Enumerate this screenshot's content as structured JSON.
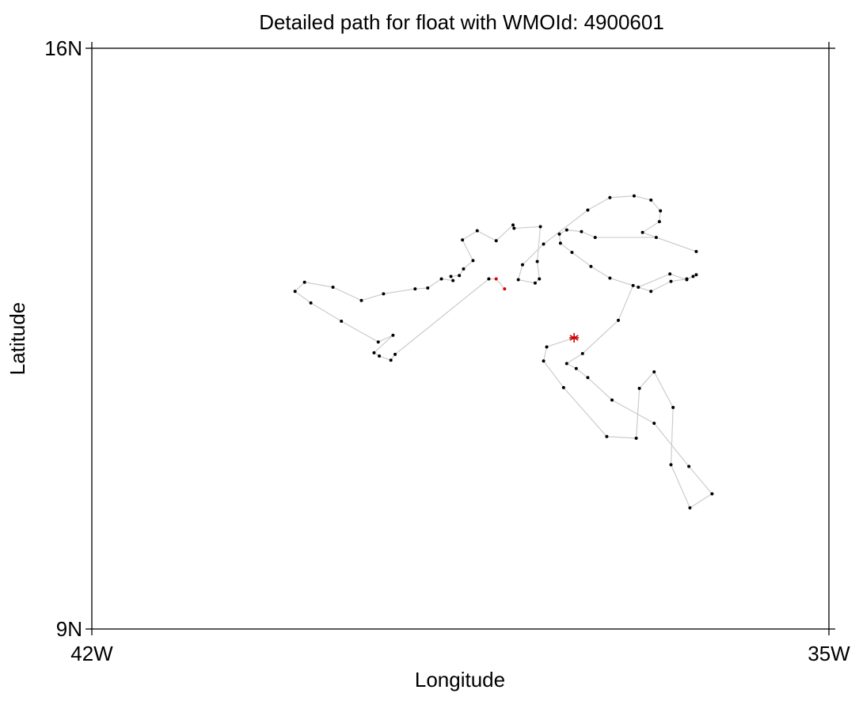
{
  "chart_data": {
    "type": "line",
    "title": "Detailed path for float with WMOId: 4900601",
    "x_label": "Longitude",
    "y_label": "Latitude",
    "xlim": [
      -42,
      -35
    ],
    "ylim": [
      9,
      16
    ],
    "xticks": [
      {
        "value": -42,
        "label": "42W"
      },
      {
        "value": -35,
        "label": "35W"
      }
    ],
    "yticks": [
      {
        "value": 9,
        "label": "9N"
      },
      {
        "value": 16,
        "label": "16N"
      }
    ],
    "series": [
      {
        "marker": "star",
        "color": "#cc0000",
        "x": [
          -37.42
        ],
        "y": [
          12.51
        ]
      },
      {
        "marker": "dot",
        "color": "#000000",
        "line_color": "#cccccc",
        "connect_from_previous": true,
        "x": [
          -37.68,
          -37.71,
          -37.52,
          -37.11,
          -36.83,
          -36.8,
          -36.66,
          -36.48,
          -36.5,
          -36.32,
          -36.11,
          -36.33,
          -36.66,
          -37.06,
          -37.29,
          -37.4,
          -37.49,
          -37.34,
          -37.0,
          -36.86,
          -36.69,
          -36.5,
          -36.35,
          -36.29,
          -36.26,
          -36.35,
          -36.51,
          -36.81,
          -37.08,
          -37.26,
          -37.44,
          -37.55,
          -37.56,
          -37.49,
          -37.35,
          -37.22,
          -36.64,
          -36.26,
          -36.77,
          -36.61,
          -36.6,
          -36.69,
          -36.85,
          -37.08,
          -37.29,
          -37.71,
          -37.91,
          -37.95,
          -37.79,
          -37.75,
          -37.77,
          -37.74,
          -37.99,
          -38.0,
          -38.16,
          -38.34,
          -38.48,
          -38.38,
          -38.47,
          -38.51,
          -38.59,
          -38.57,
          -38.68,
          -38.81,
          -38.93,
          -39.23,
          -39.44,
          -39.71,
          -39.98,
          -40.07,
          -39.92,
          -39.63,
          -39.28,
          -39.14,
          -39.32,
          -39.27,
          -39.16,
          -39.12,
          -38.23
        ],
        "y": [
          12.4,
          12.23,
          11.91,
          11.32,
          11.3,
          11.9,
          12.1,
          11.67,
          10.98,
          10.46,
          10.63,
          10.96,
          11.48,
          11.76,
          12.03,
          12.14,
          12.2,
          12.32,
          12.72,
          13.14,
          13.07,
          13.19,
          13.22,
          13.25,
          13.27,
          13.21,
          13.28,
          13.12,
          13.23,
          13.37,
          13.54,
          13.65,
          13.76,
          13.81,
          13.79,
          13.72,
          13.72,
          13.55,
          13.78,
          13.91,
          14.04,
          14.17,
          14.22,
          14.2,
          14.05,
          13.64,
          13.39,
          13.21,
          13.17,
          13.22,
          13.43,
          13.85,
          13.83,
          13.87,
          13.68,
          13.8,
          13.69,
          13.44,
          13.34,
          13.26,
          13.25,
          13.2,
          13.22,
          13.11,
          13.1,
          13.04,
          12.96,
          13.12,
          13.18,
          13.07,
          12.93,
          12.71,
          12.46,
          12.54,
          12.33,
          12.29,
          12.24,
          12.31,
          13.22
        ]
      },
      {
        "marker": "dot",
        "color": "#dd0000",
        "line_color": "#cccccc",
        "connect_from_previous": true,
        "x": [
          -38.16,
          -38.08
        ],
        "y": [
          13.22,
          13.1
        ]
      }
    ]
  }
}
